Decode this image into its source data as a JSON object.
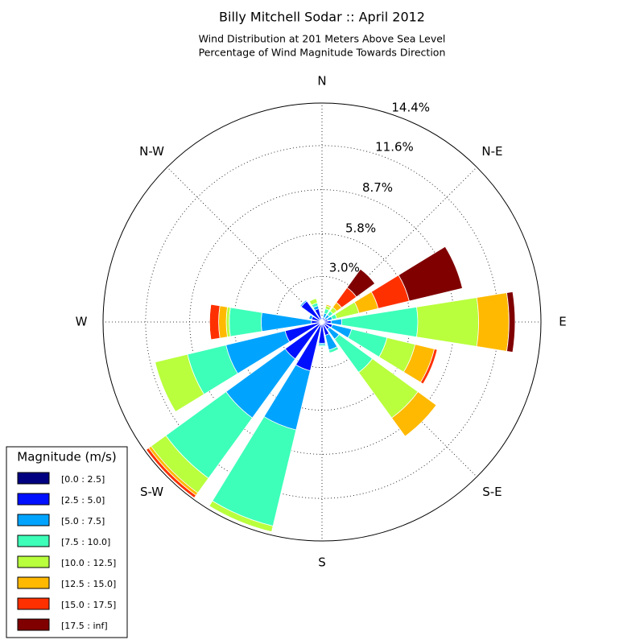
{
  "chart_data": {
    "type": "windrose",
    "title": "Billy Mitchell Sodar :: April 2012",
    "subtitle": [
      "Wind Distribution at 201 Meters Above Sea Level",
      "Percentage of Wind Magnitude Towards Direction"
    ],
    "x": [
      0,
      22.5,
      45,
      67.5,
      90,
      112.5,
      135,
      157.5,
      180,
      202.5,
      225,
      247.5,
      270,
      292.5,
      315,
      337.5
    ],
    "xticks": [
      {
        "value": 0,
        "label": "N"
      },
      {
        "value": 45,
        "label": "N-E"
      },
      {
        "value": 90,
        "label": "E"
      },
      {
        "value": 135,
        "label": "S-E"
      },
      {
        "value": 180,
        "label": "S"
      },
      {
        "value": 225,
        "label": "S-W"
      },
      {
        "value": 270,
        "label": "W"
      },
      {
        "value": 315,
        "label": "N-W"
      }
    ],
    "ylim": [
      0,
      14.4
    ],
    "yticks": [
      {
        "value": 3.0,
        "label": "3.0%"
      },
      {
        "value": 5.8,
        "label": "5.8%"
      },
      {
        "value": 8.7,
        "label": "8.7%"
      },
      {
        "value": 11.6,
        "label": "11.6%"
      },
      {
        "value": 14.4,
        "label": "14.4%"
      }
    ],
    "grid": true,
    "legend_title": "Magnitude (m/s)",
    "legend_position": "lower left",
    "series": [
      {
        "name": "[0.0 : 2.5]",
        "color": "#000080",
        "values": [
          0.1,
          0.1,
          0.1,
          0.1,
          0.1,
          0.1,
          0.1,
          0.1,
          0.1,
          0.2,
          0.2,
          0.1,
          0.1,
          0.1,
          0.2,
          0.1
        ]
      },
      {
        "name": "[2.5 : 5.0]",
        "color": "#0010ff",
        "values": [
          0.1,
          0.2,
          0.2,
          0.3,
          0.5,
          0.6,
          0.5,
          0.8,
          1.3,
          3.1,
          2.8,
          2.4,
          0.6,
          0.6,
          1.5,
          0.8
        ]
      },
      {
        "name": "[5.0 : 7.5]",
        "color": "#00a4ff",
        "values": [
          0.1,
          0.3,
          0.3,
          0.3,
          0.7,
          1.3,
          0.8,
          1.0,
          0.1,
          4.0,
          4.8,
          4.0,
          3.3,
          0.2,
          0.1,
          0.2
        ]
      },
      {
        "name": "[7.5 : 10.0]",
        "color": "#3dffb9",
        "values": [
          0,
          0.3,
          0.3,
          0.3,
          5.0,
          2.4,
          2.7,
          0.2,
          0.1,
          6.5,
          4.9,
          2.6,
          2.1,
          0,
          0,
          0.2
        ]
      },
      {
        "name": "[10.0 : 12.5]",
        "color": "#b9ff3d",
        "values": [
          0,
          0.2,
          0.3,
          1.5,
          4.0,
          1.9,
          3.7,
          0,
          0,
          0.4,
          1.2,
          2.2,
          0.2,
          0,
          0,
          0.3
        ]
      },
      {
        "name": "[12.5 : 15.0]",
        "color": "#ffb900",
        "values": [
          0,
          0.1,
          0.4,
          1.3,
          2.0,
          1.3,
          1.5,
          0,
          0,
          0,
          0.2,
          0,
          0.5,
          0,
          0,
          0
        ]
      },
      {
        "name": "[15.0 : 17.5]",
        "color": "#ff3000",
        "values": [
          0,
          0,
          1.2,
          2.1,
          0,
          0.2,
          0,
          0,
          0,
          0,
          0.2,
          0,
          0.6,
          0,
          0,
          0
        ]
      },
      {
        "name": "[17.5 : inf]",
        "color": "#800000",
        "values": [
          0,
          0,
          1.5,
          3.6,
          0.4,
          0,
          0,
          0,
          0,
          0,
          0,
          0,
          0,
          0,
          0,
          0
        ]
      }
    ]
  }
}
